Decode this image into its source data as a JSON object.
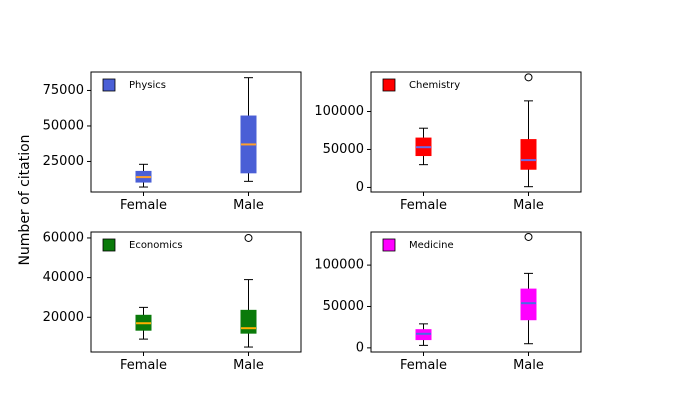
{
  "ylabel": "Number of citation",
  "chart_data": [
    {
      "type": "box",
      "panel": "top-left",
      "legend": "Physics",
      "legend_placement": "top-left",
      "color": "#4a5fd6",
      "median_color": "#ff9f2a",
      "categories": [
        "Female",
        "Male"
      ],
      "yticks": [
        25000,
        50000,
        75000
      ],
      "ytick_labels": [
        "25000",
        "50000",
        "75000"
      ],
      "ylim": [
        3500,
        88000
      ],
      "boxes": [
        {
          "category": "Female",
          "whisker_low": 7000,
          "q1": 10500,
          "median": 14000,
          "q3": 18000,
          "whisker_high": 23000,
          "outliers": []
        },
        {
          "category": "Male",
          "whisker_low": 11000,
          "q1": 17000,
          "median": 37000,
          "q3": 57000,
          "whisker_high": 84000,
          "outliers": []
        }
      ]
    },
    {
      "type": "box",
      "panel": "top-right",
      "legend": "Chemistry",
      "legend_placement": "top-left",
      "color": "#ff0000",
      "median_color": "#6a6ae6",
      "categories": [
        "Female",
        "Male"
      ],
      "yticks": [
        0,
        50000,
        100000
      ],
      "ytick_labels": [
        "0",
        "50000",
        "100000"
      ],
      "ylim": [
        -6000,
        152000
      ],
      "boxes": [
        {
          "category": "Female",
          "whisker_low": 30000,
          "q1": 42000,
          "median": 53000,
          "q3": 65000,
          "whisker_high": 78000,
          "outliers": []
        },
        {
          "category": "Male",
          "whisker_low": 1000,
          "q1": 24000,
          "median": 36000,
          "q3": 63000,
          "whisker_high": 114000,
          "outliers": [
            145000
          ]
        }
      ]
    },
    {
      "type": "box",
      "panel": "bottom-left",
      "legend": "Economics",
      "legend_placement": "top-left",
      "color": "#0a7a0a",
      "median_color": "#ffb000",
      "categories": [
        "Female",
        "Male"
      ],
      "yticks": [
        20000,
        40000,
        60000
      ],
      "ytick_labels": [
        "20000",
        "40000",
        "60000"
      ],
      "ylim": [
        2500,
        63000
      ],
      "boxes": [
        {
          "category": "Female",
          "whisker_low": 9000,
          "q1": 13500,
          "median": 17000,
          "q3": 21000,
          "whisker_high": 25000,
          "outliers": []
        },
        {
          "category": "Male",
          "whisker_low": 5000,
          "q1": 12000,
          "median": 14500,
          "q3": 23500,
          "whisker_high": 39000,
          "outliers": [
            60000
          ]
        }
      ]
    },
    {
      "type": "box",
      "panel": "bottom-right",
      "legend": "Medicine",
      "legend_placement": "top-left",
      "color": "#ff00ff",
      "median_color": "#4a6ae6",
      "categories": [
        "Female",
        "Male"
      ],
      "yticks": [
        0,
        50000,
        100000
      ],
      "ytick_labels": [
        "0",
        "50000",
        "100000"
      ],
      "ylim": [
        -5000,
        140000
      ],
      "boxes": [
        {
          "category": "Female",
          "whisker_low": 3000,
          "q1": 10000,
          "median": 17000,
          "q3": 22000,
          "whisker_high": 29000,
          "outliers": []
        },
        {
          "category": "Male",
          "whisker_low": 5000,
          "q1": 34000,
          "median": 54000,
          "q3": 71000,
          "whisker_high": 90000,
          "outliers": [
            134000
          ]
        }
      ]
    }
  ]
}
